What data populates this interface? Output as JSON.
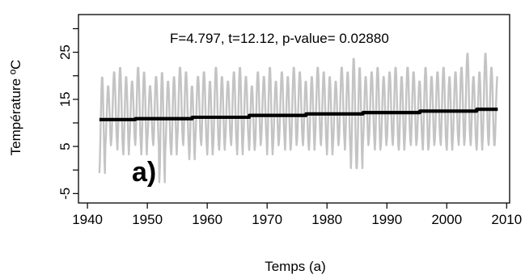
{
  "chart_data": {
    "type": "line",
    "annotation": "F=4.797, t=12.12, p-value= 0.02880",
    "panel_label": "a)",
    "xlabel": "Temps (a)",
    "ylabel": "Température ºC",
    "xlim": [
      1938.5,
      2010.5
    ],
    "ylim": [
      -7,
      33
    ],
    "x_ticks": [
      1940,
      1950,
      1960,
      1970,
      1980,
      1990,
      2000,
      2010
    ],
    "y_ticks": [
      -5,
      5,
      15,
      25
    ],
    "y_minor_ticks": [
      0,
      10,
      20,
      30
    ],
    "grid": false,
    "series": [
      {
        "role": "monthly temperature",
        "color": "#c4c4c4",
        "start_year": 1942.0,
        "end_year": 2008.5,
        "points_per_year": 12,
        "seasonal_min": [
          -1,
          5,
          6,
          4,
          3,
          6,
          5,
          3,
          6,
          5,
          -3,
          4,
          3,
          6,
          5,
          2,
          6,
          5,
          3,
          5,
          4,
          6,
          5,
          3,
          6,
          4,
          5,
          6,
          3,
          5,
          6,
          4,
          5,
          6,
          5,
          4,
          6,
          5,
          3,
          5,
          6,
          4,
          0,
          0,
          5,
          6,
          4,
          5,
          6,
          5,
          4,
          6,
          5,
          6,
          4,
          5,
          6,
          5,
          4,
          6,
          5,
          6,
          5,
          4,
          6,
          5,
          5
        ],
        "seasonal_max": [
          20,
          18,
          21,
          22,
          20,
          19,
          22,
          21,
          18,
          20,
          21,
          19,
          20,
          22,
          21,
          18,
          20,
          21,
          19,
          22,
          20,
          19,
          21,
          22,
          20,
          18,
          21,
          20,
          22,
          19,
          21,
          20,
          22,
          21,
          19,
          20,
          22,
          21,
          20,
          19,
          22,
          21,
          24,
          22,
          20,
          21,
          22,
          20,
          21,
          22,
          20,
          22,
          21,
          19,
          22,
          20,
          21,
          22,
          20,
          21,
          22,
          25,
          20,
          21,
          25,
          22,
          20
        ]
      },
      {
        "role": "stepwise trend",
        "color": "#000000",
        "steps": [
          {
            "x_start": 1942.0,
            "x_end": 1948.0,
            "y": 10.7
          },
          {
            "x_start": 1948.0,
            "x_end": 1957.5,
            "y": 10.9
          },
          {
            "x_start": 1957.5,
            "x_end": 1967.0,
            "y": 11.2
          },
          {
            "x_start": 1967.0,
            "x_end": 1976.5,
            "y": 11.6
          },
          {
            "x_start": 1976.5,
            "x_end": 1986.0,
            "y": 11.9
          },
          {
            "x_start": 1986.0,
            "x_end": 1995.5,
            "y": 12.2
          },
          {
            "x_start": 1995.5,
            "x_end": 2005.0,
            "y": 12.5
          },
          {
            "x_start": 2005.0,
            "x_end": 2008.5,
            "y": 12.9
          }
        ]
      }
    ]
  }
}
